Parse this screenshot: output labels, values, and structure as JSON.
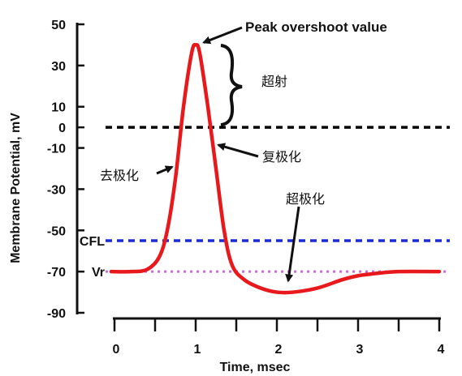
{
  "chart_data": {
    "type": "line",
    "xlabel": "Time, msec",
    "ylabel": "Membrane Potential, mV",
    "xlim": [
      -0.04,
      4
    ],
    "ylim": [
      -90,
      50
    ],
    "x_ticks": [
      0,
      1,
      2,
      3,
      4
    ],
    "y_ticks": [
      50,
      30,
      10,
      0,
      -10,
      -30,
      -50,
      -70,
      -90
    ],
    "series": [
      {
        "color": "#e8191c",
        "x": [
          -0.04,
          0.2,
          0.4,
          0.55,
          0.65,
          0.75,
          0.85,
          0.95,
          1.0,
          1.05,
          1.15,
          1.25,
          1.35,
          1.45,
          1.6,
          1.8,
          2.0,
          2.2,
          2.5,
          2.8,
          3.0,
          3.2,
          3.5,
          4.0
        ],
        "y": [
          -70,
          -70,
          -69,
          -63,
          -50,
          -25,
          10,
          36,
          40,
          36,
          10,
          -20,
          -50,
          -67,
          -74,
          -78,
          -80,
          -80,
          -78,
          -74,
          -72,
          -71,
          -70,
          -70
        ]
      }
    ],
    "reference_lines": [
      {
        "label": "",
        "y": 0,
        "color": "#000000",
        "style": "dashed"
      },
      {
        "label": "CFL",
        "y": -55,
        "color": "#1c2bd1",
        "style": "dashed"
      },
      {
        "label": "Vr",
        "y": -70,
        "color": "#c86fd6",
        "style": "dotted"
      }
    ],
    "annotations": [
      {
        "text": "Peak overshoot value",
        "x": 1.0,
        "y": 40
      },
      {
        "text": "超射"
      },
      {
        "text": "复极化",
        "x": 1.22,
        "y": -7
      },
      {
        "text": "去极化",
        "x": 0.75,
        "y": -20
      },
      {
        "text": "超极化",
        "x": 2.1,
        "y": -80
      }
    ]
  }
}
